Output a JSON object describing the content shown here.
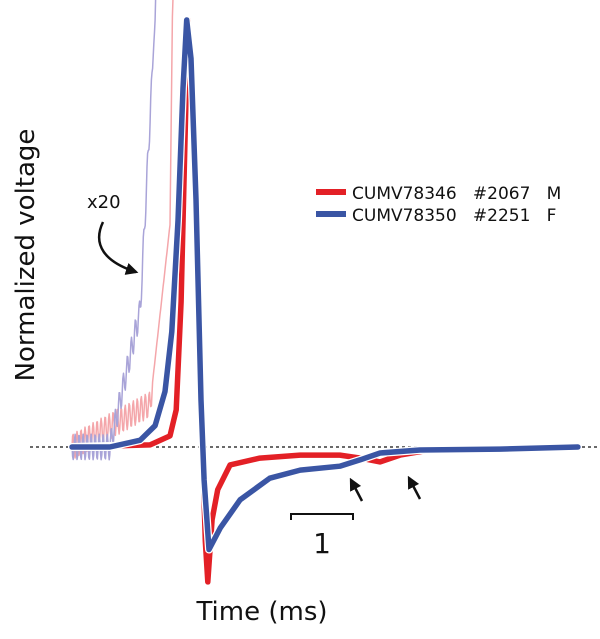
{
  "chart_data": {
    "type": "line",
    "title": "",
    "xlabel": "Time (ms)",
    "ylabel": "Normalized voltage",
    "grid": false,
    "legend_placement": "top-right",
    "baseline_dotted": true,
    "scale_bar": {
      "value": 1,
      "label": "1"
    },
    "inset_annotation": "x20",
    "colors": {
      "red": "#e32026",
      "blue": "#3a55a4",
      "red_x20": "#f4a6aa",
      "blue_x20": "#a9a4d8"
    },
    "series": [
      {
        "name": "CUMV78346   #2067   M",
        "color": "#e32026",
        "x": [
          0,
          1.26,
          1.58,
          1.68,
          1.76,
          1.82,
          1.87,
          1.95,
          2.03,
          2.1,
          2.15,
          2.19,
          2.26,
          2.35,
          2.55,
          3.03,
          3.68,
          4.32,
          4.65,
          4.97,
          5.29,
          5.77,
          8.16
        ],
        "y": [
          0,
          0.005,
          0.026,
          0.087,
          0.34,
          0.7,
          1.0,
          0.81,
          0.46,
          0.02,
          -0.22,
          -0.316,
          -0.17,
          -0.1,
          -0.042,
          -0.026,
          -0.019,
          -0.019,
          -0.026,
          -0.035,
          -0.019,
          -0.007,
          0
        ]
      },
      {
        "name": "CUMV78350   #2251   F",
        "color": "#3a55a4",
        "x": [
          0,
          0.61,
          1.1,
          1.34,
          1.5,
          1.61,
          1.71,
          1.79,
          1.85,
          1.92,
          2.0,
          2.08,
          2.13,
          2.21,
          2.39,
          2.71,
          3.19,
          3.68,
          4.32,
          4.65,
          4.97,
          5.61,
          6.9,
          8.16
        ],
        "y": [
          0,
          0,
          0.016,
          0.05,
          0.13,
          0.27,
          0.53,
          0.84,
          1.0,
          0.91,
          0.58,
          0.11,
          -0.077,
          -0.24,
          -0.19,
          -0.124,
          -0.073,
          -0.054,
          -0.045,
          -0.03,
          -0.014,
          -0.007,
          -0.005,
          0
        ]
      }
    ]
  }
}
